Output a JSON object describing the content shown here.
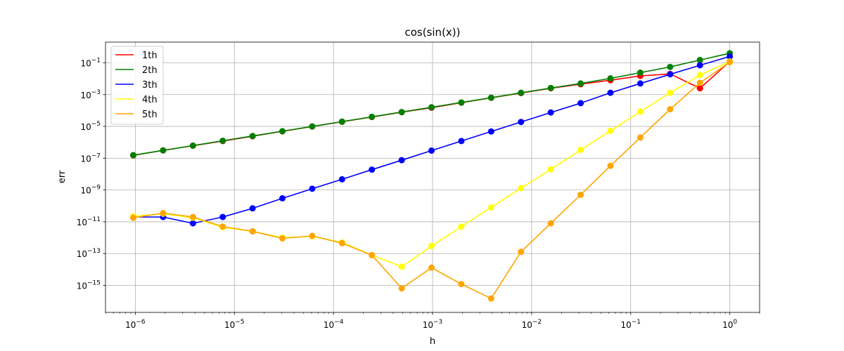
{
  "chart_data": {
    "type": "line",
    "title": "cos(sin(x))",
    "xlabel": "h",
    "ylabel": "err",
    "x_scale": "log",
    "y_scale": "log",
    "xlim": [
      5e-07,
      2
    ],
    "ylim": [
      2e-17,
      2
    ],
    "grid": true,
    "legend_position": "top-left",
    "x_ticks": [
      {
        "value": 1e-06,
        "base": "10",
        "exp": "−6"
      },
      {
        "value": 1e-05,
        "base": "10",
        "exp": "−5"
      },
      {
        "value": 0.0001,
        "base": "10",
        "exp": "−4"
      },
      {
        "value": 0.001,
        "base": "10",
        "exp": "−3"
      },
      {
        "value": 0.01,
        "base": "10",
        "exp": "−2"
      },
      {
        "value": 0.1,
        "base": "10",
        "exp": "−1"
      },
      {
        "value": 1,
        "base": "10",
        "exp": "0"
      }
    ],
    "y_ticks": [
      {
        "value": 0.1,
        "base": "10",
        "exp": "−1"
      },
      {
        "value": 0.001,
        "base": "10",
        "exp": "−3"
      },
      {
        "value": 1e-05,
        "base": "10",
        "exp": "−5"
      },
      {
        "value": 1e-07,
        "base": "10",
        "exp": "−7"
      },
      {
        "value": 1e-09,
        "base": "10",
        "exp": "−9"
      },
      {
        "value": 1e-11,
        "base": "10",
        "exp": "−11"
      },
      {
        "value": 1e-13,
        "base": "10",
        "exp": "−13"
      },
      {
        "value": 1e-15,
        "base": "10",
        "exp": "−15"
      }
    ],
    "x": [
      1,
      0.5,
      0.25,
      0.125,
      0.0625,
      0.03125,
      0.015625,
      0.0078125,
      0.00390625,
      0.001953125,
      0.0009765625,
      0.00048828125,
      0.000244140625,
      0.0001220703125,
      6.103515625e-05,
      3.0517578125e-05,
      1.52587890625e-05,
      7.62939453125e-06,
      3.814697265625e-06,
      1.9073486328125e-06,
      9.5367431640625e-07
    ],
    "series": [
      {
        "name": "1th",
        "color": "#ff0000",
        "values": [
          0.12,
          0.0025,
          0.02,
          0.015,
          0.008,
          0.0045,
          0.0025,
          0.00125,
          0.00063,
          0.00031,
          0.00015,
          7.8e-05,
          3.9e-05,
          1.95e-05,
          9.8e-06,
          4.9e-06,
          2.4e-06,
          1.2e-06,
          6.1e-07,
          3.1e-07,
          1.5e-07
        ]
      },
      {
        "name": "2th",
        "color": "#008000",
        "values": [
          0.4,
          0.15,
          0.055,
          0.024,
          0.0105,
          0.005,
          0.0026,
          0.0013,
          0.00064,
          0.00032,
          0.00016,
          8e-05,
          4e-05,
          2e-05,
          1e-05,
          5e-06,
          2.5e-06,
          1.25e-06,
          6.2e-07,
          3.1e-07,
          1.55e-07
        ]
      },
      {
        "name": "3th",
        "color": "#0000ff",
        "values": [
          0.25,
          0.07,
          0.019,
          0.005,
          0.0013,
          0.00029,
          7.5e-05,
          1.9e-05,
          4.8e-06,
          1.2e-06,
          3e-07,
          7.5e-08,
          1.9e-08,
          4.7e-09,
          1.2e-09,
          3e-10,
          7e-11,
          2e-11,
          8e-12,
          2e-11,
          2e-11
        ]
      },
      {
        "name": "4th",
        "color": "#ffff00",
        "values": [
          0.12,
          0.017,
          0.0013,
          8.5e-05,
          5.3e-06,
          3.3e-07,
          2e-08,
          1.3e-09,
          8e-11,
          5e-12,
          3e-13,
          1.5e-14,
          8e-14,
          5e-13,
          1.2e-12,
          1e-12,
          2.5e-12,
          4.5e-12,
          1.8e-11,
          3.2e-11,
          2.2e-11
        ]
      },
      {
        "name": "5th",
        "color": "#ffa500",
        "values": [
          0.11,
          0.0055,
          0.00012,
          2e-06,
          3.3e-08,
          5e-10,
          8e-12,
          1.3e-13,
          1.5e-16,
          1.2e-15,
          1.3e-14,
          6.5e-16,
          8e-14,
          4.5e-13,
          1.3e-12,
          9e-13,
          2.5e-12,
          5e-12,
          2e-11,
          3.5e-11,
          1.8e-11
        ]
      }
    ]
  }
}
